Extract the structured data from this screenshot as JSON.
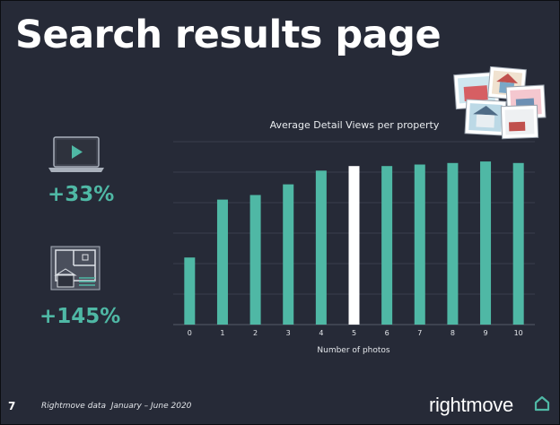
{
  "slide": {
    "title": "Search results page",
    "page_number": "7",
    "source": "Rightmove data  January – June 2020",
    "logo_text": "rightmove"
  },
  "stats": {
    "video": {
      "value": "+33%",
      "icon": "laptop-video-icon"
    },
    "floorplan": {
      "value": "+145%",
      "icon": "floorplan-icon"
    }
  },
  "colors": {
    "background": "#262a37",
    "bar": "#4fb8a5",
    "highlight_bar": "#ffffff",
    "accent": "#4fb8a5"
  },
  "chart_data": {
    "type": "bar",
    "title": "Average Detail Views per property",
    "xlabel": "Number of photos",
    "ylabel": "",
    "categories": [
      "0",
      "1",
      "2",
      "3",
      "4",
      "5",
      "6",
      "7",
      "8",
      "9",
      "10"
    ],
    "values": [
      22,
      41,
      42.5,
      46,
      50.5,
      52,
      52,
      52.5,
      53,
      53.5,
      53
    ],
    "highlight_index": 5,
    "ylim": [
      0,
      60
    ],
    "grid": true,
    "legend": "none"
  }
}
